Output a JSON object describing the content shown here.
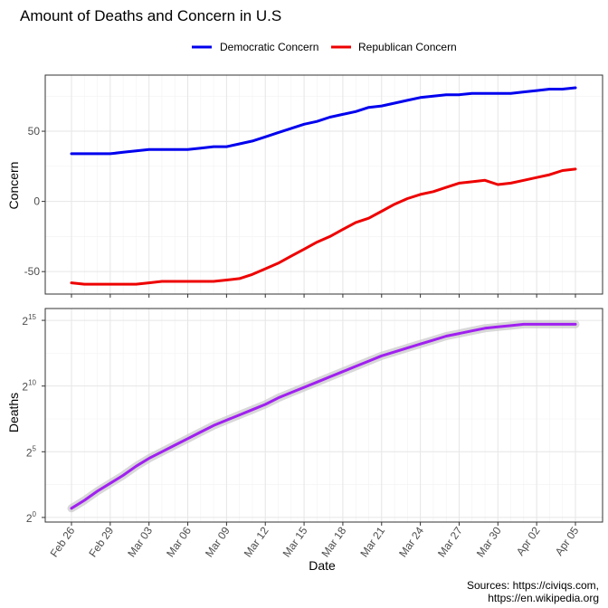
{
  "chart_data": {
    "type": "line",
    "title": "Amount of Deaths and Concern in U.S",
    "caption": [
      "Sources: https://civiqs.com,",
      "https://en.wikipedia.org"
    ],
    "xlabel": "Date",
    "x_ticks": [
      "Feb 26",
      "Feb 29",
      "Mar 03",
      "Mar 06",
      "Mar 09",
      "Mar 12",
      "Mar 15",
      "Mar 18",
      "Mar 21",
      "Mar 24",
      "Mar 27",
      "Mar 30",
      "Apr 02",
      "Apr 05"
    ],
    "dates": [
      "Feb 26",
      "Feb 27",
      "Feb 28",
      "Feb 29",
      "Mar 01",
      "Mar 02",
      "Mar 03",
      "Mar 04",
      "Mar 05",
      "Mar 06",
      "Mar 07",
      "Mar 08",
      "Mar 09",
      "Mar 10",
      "Mar 11",
      "Mar 12",
      "Mar 13",
      "Mar 14",
      "Mar 15",
      "Mar 16",
      "Mar 17",
      "Mar 18",
      "Mar 19",
      "Mar 20",
      "Mar 21",
      "Mar 22",
      "Mar 23",
      "Mar 24",
      "Mar 25",
      "Mar 26",
      "Mar 27",
      "Mar 28",
      "Mar 29",
      "Mar 30",
      "Mar 31",
      "Apr 01",
      "Apr 02",
      "Apr 03",
      "Apr 04",
      "Apr 05"
    ],
    "legend": {
      "position": "top"
    },
    "grid": true,
    "panels": [
      {
        "ylabel": "Concern",
        "ylim": [
          -66,
          90
        ],
        "yticks": [
          {
            "value": -50,
            "label": "-50"
          },
          {
            "value": 0,
            "label": "0"
          },
          {
            "value": 50,
            "label": "50"
          }
        ],
        "series": [
          {
            "name": "Democratic Concern",
            "color": "#0000ee",
            "values": [
              34,
              34,
              34,
              34,
              35,
              36,
              37,
              37,
              37,
              37,
              38,
              39,
              39,
              41,
              43,
              46,
              49,
              52,
              55,
              57,
              60,
              62,
              64,
              67,
              68,
              70,
              72,
              74,
              75,
              76,
              76,
              77,
              77,
              77,
              77,
              78,
              79,
              80,
              80,
              81
            ]
          },
          {
            "name": "Republican Concern",
            "color": "#ee0000",
            "values": [
              -58,
              -59,
              -59,
              -59,
              -59,
              -59,
              -58,
              -57,
              -57,
              -57,
              -57,
              -57,
              -56,
              -55,
              -52,
              -48,
              -44,
              -39,
              -34,
              -29,
              -25,
              -20,
              -15,
              -12,
              -7,
              -2,
              2,
              5,
              7,
              10,
              13,
              14,
              15,
              12,
              13,
              15,
              17,
              19,
              22,
              23
            ]
          }
        ]
      },
      {
        "ylabel": "Deaths",
        "yscale": "log2",
        "ylim": [
          -0.35,
          15.9
        ],
        "yticks": [
          {
            "value": 0,
            "base": "2",
            "exp": "0"
          },
          {
            "value": 5,
            "base": "2",
            "exp": "5"
          },
          {
            "value": 10,
            "base": "2",
            "exp": "10"
          },
          {
            "value": 15,
            "base": "2",
            "exp": "15"
          }
        ],
        "series": [
          {
            "name": "Deaths",
            "color": "#a020f0",
            "log2_values": [
              0.7,
              1.3,
              2.0,
              2.6,
              3.2,
              3.9,
              4.5,
              5.0,
              5.5,
              6.0,
              6.5,
              7.0,
              7.4,
              7.8,
              8.2,
              8.6,
              9.1,
              9.5,
              9.9,
              10.3,
              10.7,
              11.1,
              11.5,
              11.9,
              12.3,
              12.6,
              12.9,
              13.2,
              13.5,
              13.8,
              14.0,
              14.2,
              14.4,
              14.5,
              14.6,
              14.7,
              14.7,
              14.7,
              14.7,
              14.7
            ]
          }
        ]
      }
    ]
  }
}
